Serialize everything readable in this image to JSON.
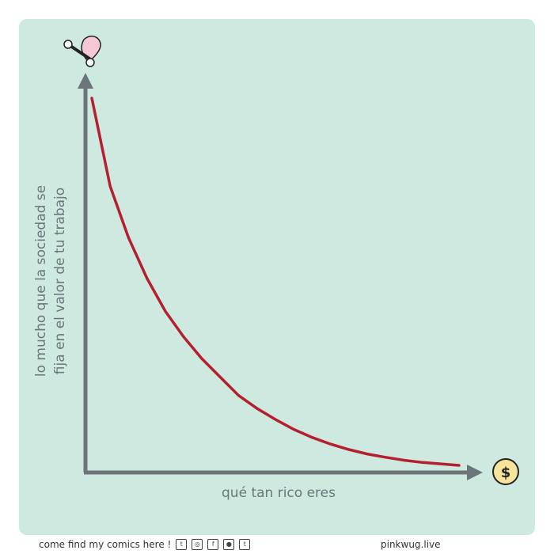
{
  "chart_data": {
    "type": "line",
    "title": "",
    "xlabel": "qué tan rico eres",
    "ylabel_line1": "lo mucho que la sociedad se",
    "ylabel_line2": "fija en el valor de tu trabajo",
    "xlim": [
      0,
      1
    ],
    "ylim": [
      0,
      1
    ],
    "grid": false,
    "series": [
      {
        "x": [
          0,
          0.05,
          0.1,
          0.15,
          0.2,
          0.25,
          0.3,
          0.35,
          0.4,
          0.45,
          0.5,
          0.55,
          0.6,
          0.65,
          0.7,
          0.75,
          0.8,
          0.85,
          0.9,
          0.95,
          1.0
        ],
        "values": [
          1.0,
          0.76,
          0.62,
          0.51,
          0.42,
          0.35,
          0.29,
          0.24,
          0.19,
          0.155,
          0.125,
          0.098,
          0.076,
          0.058,
          0.043,
          0.031,
          0.022,
          0.014,
          0.008,
          0.004,
          0.0
        ]
      }
    ],
    "x_end_icon": "dollar-coin-icon",
    "y_end_icon": "wrench-heart-icon",
    "colors": {
      "panel": "#cde9e0",
      "axis": "#6b757a",
      "curve": "#b5202e",
      "coin": "#f8e39a"
    }
  },
  "footer": {
    "left_text": "come find my comics here !",
    "social_icons": [
      "twitter-icon",
      "instagram-icon",
      "facebook-icon",
      "reddit-icon",
      "tumblr-icon"
    ],
    "right_text": "pinkwug.live"
  },
  "coin_symbol": "$"
}
